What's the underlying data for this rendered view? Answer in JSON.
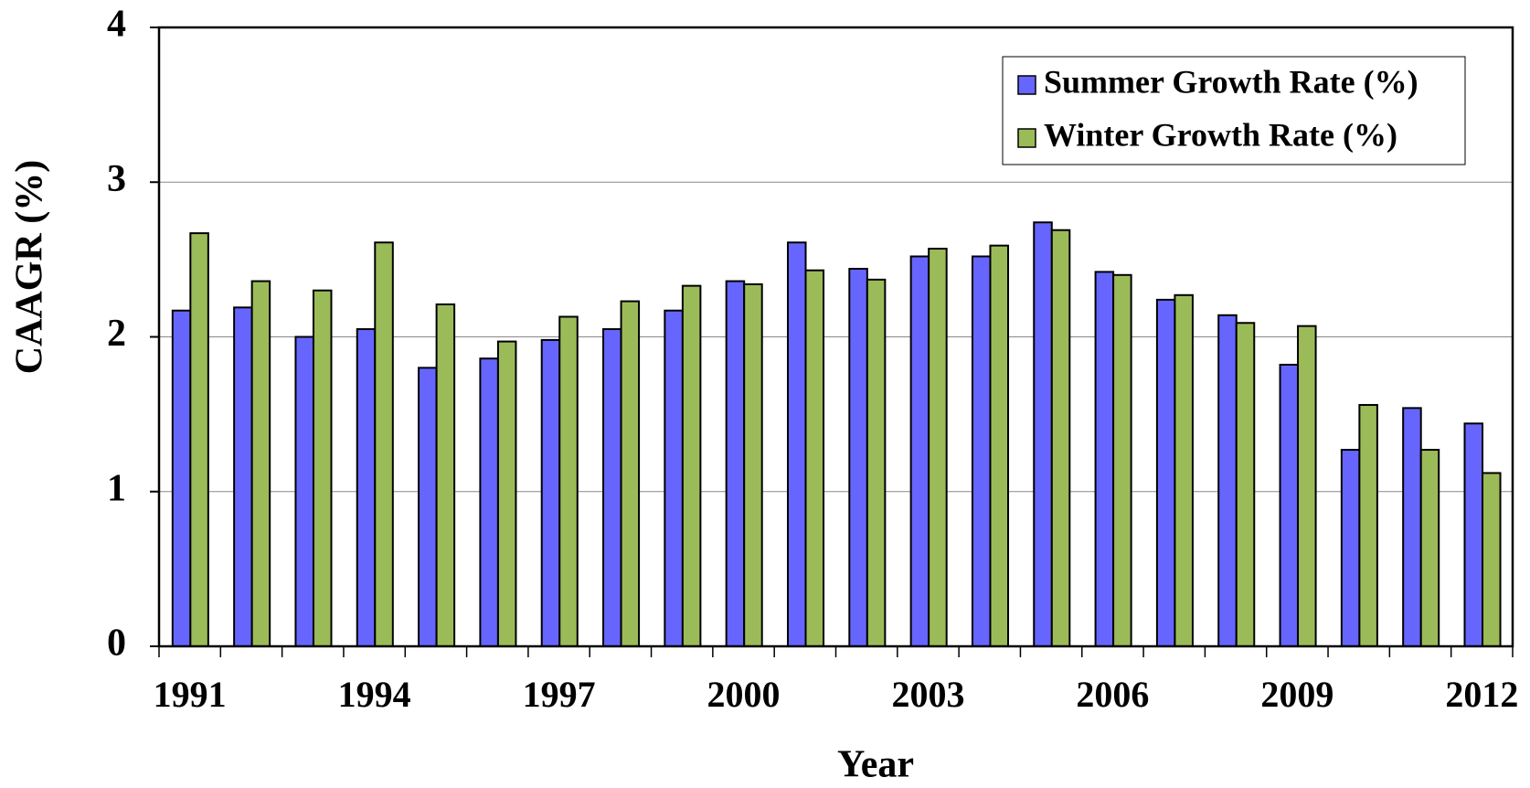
{
  "chart_data": {
    "type": "bar",
    "x_label": "Year",
    "y_label": "CAAGR (%)",
    "categories": [
      "1991",
      null,
      null,
      "1994",
      null,
      null,
      "1997",
      null,
      null,
      "2000",
      null,
      null,
      "2003",
      null,
      null,
      "2006",
      null,
      null,
      "2009",
      null,
      null,
      "2012"
    ],
    "series": [
      {
        "name": "Summer Growth Rate (%)",
        "color": "#6666ff",
        "values": [
          2.17,
          2.19,
          2.0,
          2.05,
          1.8,
          1.86,
          1.98,
          2.05,
          2.17,
          2.36,
          2.61,
          2.44,
          2.52,
          2.52,
          2.74,
          2.42,
          2.24,
          2.14,
          1.82,
          1.27,
          1.54,
          1.44
        ]
      },
      {
        "name": "Winter Growth Rate (%)",
        "color": "#9bbb59",
        "values": [
          2.67,
          2.36,
          2.3,
          2.61,
          2.21,
          1.97,
          2.13,
          2.23,
          2.33,
          2.34,
          2.43,
          2.37,
          2.57,
          2.59,
          2.69,
          2.4,
          2.27,
          2.09,
          2.07,
          1.56,
          1.27,
          1.12
        ]
      }
    ],
    "ylim": [
      0,
      4
    ],
    "yticks": [
      0,
      1,
      2,
      3,
      4
    ],
    "grid": true,
    "legend": "upper right"
  }
}
